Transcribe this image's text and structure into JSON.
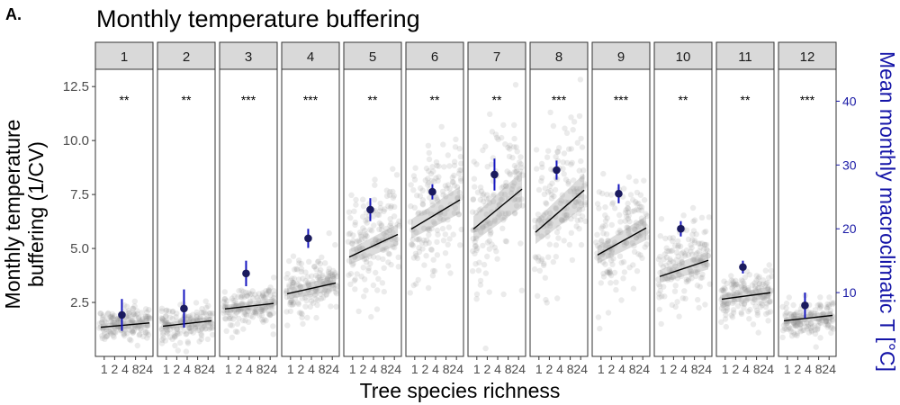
{
  "figure": {
    "panel_label": "A.",
    "title": "Monthly temperature buffering"
  },
  "chart_data": {
    "type": "scatter",
    "title": "Monthly temperature buffering",
    "xlabel": "Tree species richness",
    "ylabel_lines": [
      "Monthly temperature",
      "buffering (1/CV)"
    ],
    "y2label": "Mean monthly macroclimatic T [°C]",
    "ylim": [
      0,
      13.3
    ],
    "y_ticks": [
      2.5,
      5.0,
      7.5,
      10.0,
      12.5
    ],
    "y_tick_labels": [
      "2.5",
      "5.0",
      "7.5",
      "10.0",
      "12.5"
    ],
    "y2lim": [
      0,
      45
    ],
    "y2_ticks": [
      10,
      20,
      30,
      40
    ],
    "y2_tick_labels": [
      "10",
      "20",
      "30",
      "40"
    ],
    "x_tick_labels": [
      "1",
      "2",
      "4",
      "8",
      "24"
    ],
    "grid": false,
    "colors": {
      "points": "#808080",
      "ribbon": "#9a9a9a",
      "trend": "#000000",
      "macro_point": "#1a1a5e",
      "macro_err": "#1515c0",
      "y2_axis": "#1515a8",
      "strip_bg": "#d9d9d9"
    },
    "panels": [
      {
        "month": "1",
        "sig": "**",
        "pt_mean": 1.4,
        "pt_sd": 0.4,
        "trend": [
          1.35,
          1.55
        ],
        "ci": 0.15,
        "macro_temp": 6.5,
        "macro_err": 2.5
      },
      {
        "month": "2",
        "sig": "**",
        "pt_mean": 1.4,
        "pt_sd": 0.4,
        "trend": [
          1.4,
          1.65
        ],
        "ci": 0.15,
        "macro_temp": 7.5,
        "macro_err": 3.0
      },
      {
        "month": "3",
        "sig": "***",
        "pt_mean": 2.2,
        "pt_sd": 0.5,
        "trend": [
          2.2,
          2.45
        ],
        "ci": 0.18,
        "macro_temp": 13.0,
        "macro_err": 2.0
      },
      {
        "month": "4",
        "sig": "***",
        "pt_mean": 3.0,
        "pt_sd": 0.7,
        "trend": [
          2.9,
          3.4
        ],
        "ci": 0.25,
        "macro_temp": 18.5,
        "macro_err": 1.5
      },
      {
        "month": "5",
        "sig": "**",
        "pt_mean": 4.8,
        "pt_sd": 1.2,
        "trend": [
          4.6,
          5.65
        ],
        "ci": 0.35,
        "macro_temp": 23.0,
        "macro_err": 1.8
      },
      {
        "month": "6",
        "sig": "**",
        "pt_mean": 6.2,
        "pt_sd": 1.5,
        "trend": [
          5.9,
          7.25
        ],
        "ci": 0.45,
        "macro_temp": 25.8,
        "macro_err": 1.2
      },
      {
        "month": "7",
        "sig": "**",
        "pt_mean": 6.3,
        "pt_sd": 1.7,
        "trend": [
          5.9,
          7.75
        ],
        "ci": 0.6,
        "macro_temp": 28.5,
        "macro_err": 2.5
      },
      {
        "month": "8",
        "sig": "***",
        "pt_mean": 6.2,
        "pt_sd": 1.7,
        "trend": [
          5.75,
          7.7
        ],
        "ci": 0.55,
        "macro_temp": 29.2,
        "macro_err": 1.5
      },
      {
        "month": "9",
        "sig": "***",
        "pt_mean": 4.9,
        "pt_sd": 1.2,
        "trend": [
          4.7,
          5.95
        ],
        "ci": 0.4,
        "macro_temp": 25.5,
        "macro_err": 1.5
      },
      {
        "month": "10",
        "sig": "**",
        "pt_mean": 3.8,
        "pt_sd": 0.9,
        "trend": [
          3.7,
          4.45
        ],
        "ci": 0.3,
        "macro_temp": 20.0,
        "macro_err": 1.2
      },
      {
        "month": "11",
        "sig": "**",
        "pt_mean": 2.7,
        "pt_sd": 0.55,
        "trend": [
          2.65,
          2.95
        ],
        "ci": 0.2,
        "macro_temp": 14.0,
        "macro_err": 1.0
      },
      {
        "month": "12",
        "sig": "***",
        "pt_mean": 1.6,
        "pt_sd": 0.4,
        "trend": [
          1.65,
          1.9
        ],
        "ci": 0.15,
        "macro_temp": 8.0,
        "macro_err": 2.0
      }
    ]
  }
}
